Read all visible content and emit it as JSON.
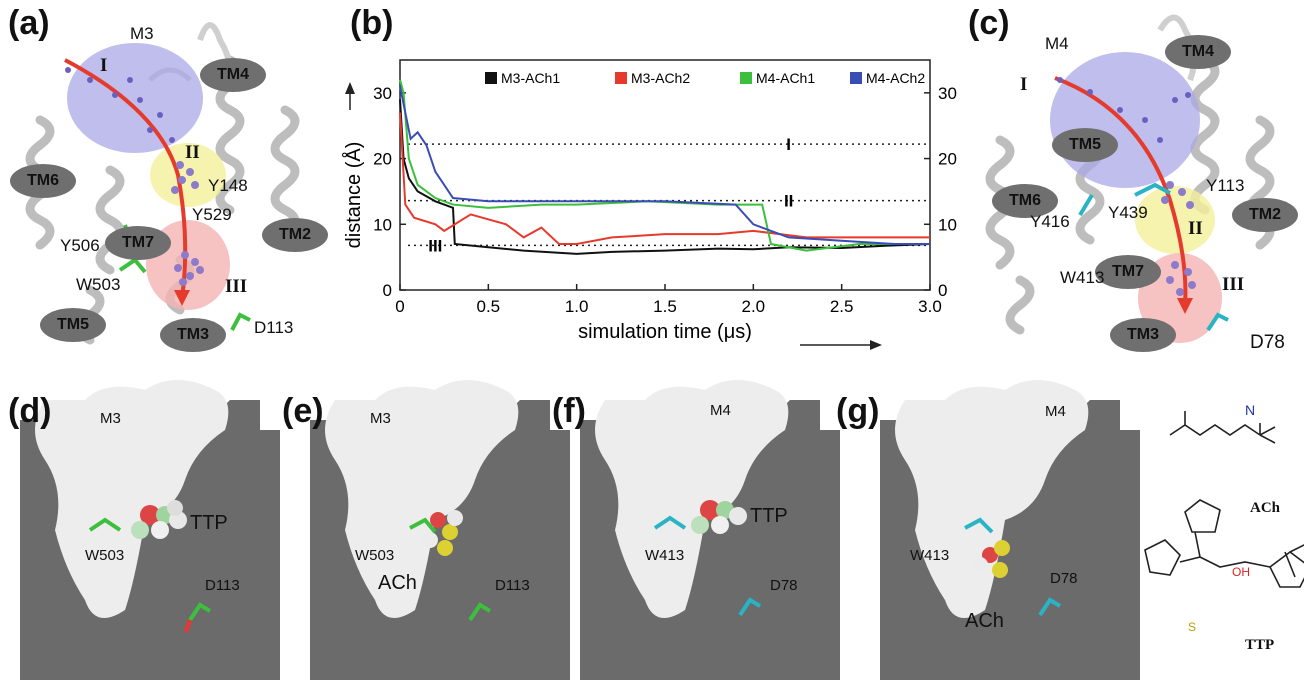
{
  "colors": {
    "m3_ach1": "#111111",
    "m3_ach2": "#e53b2c",
    "m4_ach1": "#3cbf3c",
    "m4_ach2": "#3a4db5",
    "region_I": "#a9a8e6",
    "region_II": "#f2f09a",
    "region_III": "#f4b3b3",
    "cavity_bg": "#6b6b6b",
    "cavity": "#ededed"
  },
  "panel_a": {
    "label": "(a)",
    "receptor": "M3",
    "tm_labels": [
      "TM4",
      "TM6",
      "TM7",
      "TM2",
      "TM5",
      "TM3"
    ],
    "regions": [
      "I",
      "II",
      "III"
    ],
    "residues": [
      "Y148",
      "Y529",
      "Y506",
      "W503",
      "D113"
    ]
  },
  "panel_c": {
    "label": "(c)",
    "receptor": "M4",
    "tm_labels": [
      "TM4",
      "TM5",
      "TM6",
      "TM2",
      "TM7",
      "TM3"
    ],
    "regions": [
      "I",
      "II",
      "III"
    ],
    "residues": [
      "Y113",
      "Y416",
      "Y439",
      "W413",
      "D78"
    ]
  },
  "panel_b": {
    "label": "(b)"
  },
  "chart_data": {
    "type": "line",
    "xlabel": "simulation time (μs)",
    "ylabel": "distance (Å)",
    "xlim": [
      0,
      3.0
    ],
    "ylim": [
      0,
      35
    ],
    "xticks": [
      "0",
      "0.5",
      "1.0",
      "1.5",
      "2.0",
      "2.5",
      "3.0"
    ],
    "yticks": [
      "0",
      "10",
      "20",
      "30"
    ],
    "legend_position": "top-right",
    "reference_lines": [
      {
        "label": "I",
        "y": 22.2
      },
      {
        "label": "II",
        "y": 13.6
      },
      {
        "label": "III",
        "y": 6.8
      }
    ],
    "series": [
      {
        "name": "M3-ACh1",
        "color": "#111111",
        "x": [
          0,
          0.02,
          0.05,
          0.1,
          0.2,
          0.3,
          0.31,
          0.5,
          0.7,
          1.0,
          1.2,
          1.5,
          1.8,
          2.0,
          2.2,
          2.5,
          2.8,
          3.0
        ],
        "y": [
          29,
          20,
          17,
          15,
          13.5,
          12.5,
          7,
          6.5,
          6,
          5.5,
          5.8,
          6,
          6.3,
          6.2,
          6.5,
          6.4,
          6.8,
          7
        ]
      },
      {
        "name": "M3-ACh2",
        "color": "#e53b2c",
        "x": [
          0,
          0.03,
          0.08,
          0.2,
          0.25,
          0.4,
          0.6,
          0.7,
          0.8,
          0.9,
          1.0,
          1.2,
          1.5,
          1.8,
          2.0,
          2.3,
          2.6,
          3.0
        ],
        "y": [
          27,
          13,
          11,
          10,
          9,
          11.5,
          10,
          8,
          9.5,
          7,
          7,
          8,
          8.5,
          8.5,
          9,
          8,
          8,
          8
        ]
      },
      {
        "name": "M4-ACh1",
        "color": "#3cbf3c",
        "x": [
          0,
          0.02,
          0.05,
          0.1,
          0.2,
          0.3,
          0.5,
          0.8,
          1.0,
          1.4,
          1.8,
          2.05,
          2.1,
          2.3,
          2.6,
          3.0
        ],
        "y": [
          32,
          30,
          20,
          16,
          14,
          13,
          12.5,
          13,
          13,
          13.5,
          13,
          13,
          7,
          6,
          7,
          7
        ]
      },
      {
        "name": "M4-ACh2",
        "color": "#3a4db5",
        "x": [
          0,
          0.03,
          0.06,
          0.1,
          0.15,
          0.2,
          0.3,
          0.5,
          1.0,
          1.5,
          1.9,
          2.0,
          2.2,
          2.5,
          2.8,
          3.0
        ],
        "y": [
          31,
          27,
          23,
          24,
          22,
          18,
          14,
          13.5,
          13.5,
          13.5,
          13,
          10,
          8,
          7.5,
          7,
          7
        ]
      }
    ]
  },
  "panel_d": {
    "label": "(d)",
    "receptor": "M3",
    "ligand": "TTP",
    "residues": [
      "W503",
      "D113"
    ]
  },
  "panel_e": {
    "label": "(e)",
    "receptor": "M3",
    "ligand": "ACh",
    "residues": [
      "W503",
      "D113"
    ]
  },
  "panel_f": {
    "label": "(f)",
    "receptor": "M4",
    "ligand": "TTP",
    "residues": [
      "W413",
      "D78"
    ]
  },
  "panel_g": {
    "label": "(g)",
    "receptor": "M4",
    "ligand": "ACh",
    "residues": [
      "W413",
      "D78"
    ]
  },
  "structures": {
    "ach_label": "ACh",
    "ttp_label": "TTP",
    "oh": "OH",
    "s": "S",
    "n": "N"
  }
}
